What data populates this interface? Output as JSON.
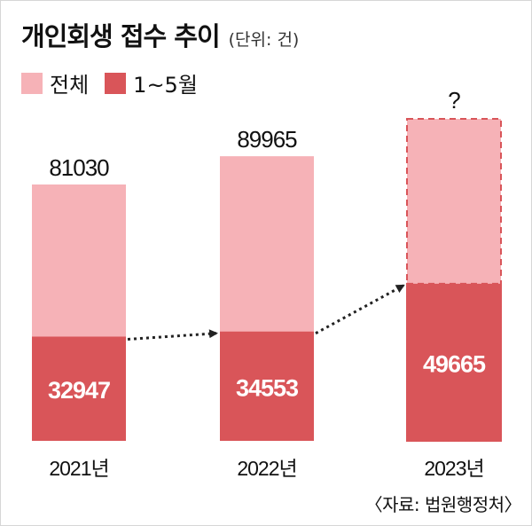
{
  "title": "개인회생 접수 추이",
  "unit": "(단위: 건)",
  "source": "〈자료: 법원행정처〉",
  "colors": {
    "total": "#f6b2b7",
    "partial": "#d95559",
    "partial_label": "#ffffff",
    "dashed_border": "#d95559",
    "arrow": "#222222"
  },
  "legend": [
    {
      "label": "전체",
      "color": "#f6b2b7"
    },
    {
      "label": "1~5월",
      "color": "#d95559"
    }
  ],
  "chart_data": {
    "type": "bar",
    "stacked": "overlay",
    "categories": [
      "2021년",
      "2022년",
      "2023년"
    ],
    "series": [
      {
        "name": "전체",
        "values": [
          81030,
          89965,
          null
        ]
      },
      {
        "name": "1~5월",
        "values": [
          32947,
          34553,
          49665
        ]
      }
    ],
    "total_labels": [
      "81030",
      "89965",
      "?"
    ],
    "partial_labels": [
      "32947",
      "34553",
      "49665"
    ],
    "ylim": [
      0,
      100000
    ],
    "grid": false,
    "legend_position": "top-left",
    "annotations": [
      "dotted trend arrow across 1~5월 bars",
      "2023 total shown as dashed outline with '?'"
    ]
  }
}
